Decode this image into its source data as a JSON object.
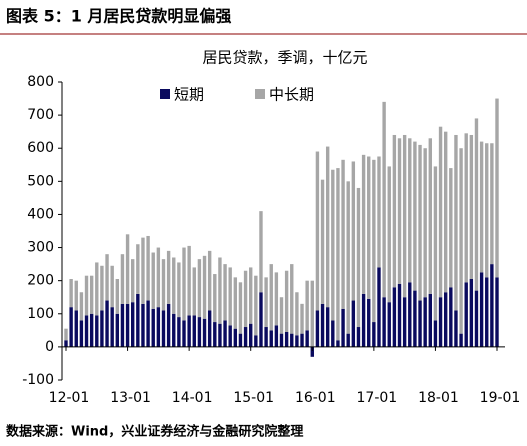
{
  "header": {
    "title": "图表 5：1 月居民贷款明显偏强"
  },
  "chart_data": {
    "type": "stacked_bar",
    "title": "居民贷款，季调，十亿元",
    "categories": [
      "12-01",
      null,
      null,
      null,
      null,
      null,
      null,
      null,
      null,
      null,
      null,
      null,
      "13-01",
      null,
      null,
      null,
      null,
      null,
      null,
      null,
      null,
      null,
      null,
      null,
      "14-01",
      null,
      null,
      null,
      null,
      null,
      null,
      null,
      null,
      null,
      null,
      null,
      "15-01",
      null,
      null,
      null,
      null,
      null,
      null,
      null,
      null,
      null,
      null,
      null,
      "16-01",
      null,
      null,
      null,
      null,
      null,
      null,
      null,
      null,
      null,
      null,
      null,
      "17-01",
      null,
      null,
      null,
      null,
      null,
      null,
      null,
      null,
      null,
      null,
      null,
      "18-01",
      null,
      null,
      null,
      null,
      null,
      null,
      null,
      null,
      null,
      null,
      null,
      "19-01"
    ],
    "series": [
      {
        "name": "短期",
        "color": "#0a0a5e",
        "values": [
          20,
          120,
          110,
          80,
          95,
          100,
          95,
          110,
          140,
          120,
          100,
          130,
          130,
          135,
          160,
          130,
          140,
          115,
          120,
          110,
          130,
          100,
          90,
          80,
          95,
          95,
          90,
          85,
          110,
          75,
          70,
          80,
          65,
          55,
          40,
          60,
          70,
          35,
          165,
          60,
          50,
          65,
          40,
          45,
          40,
          35,
          40,
          50,
          -30,
          110,
          130,
          120,
          80,
          20,
          115,
          40,
          140,
          60,
          160,
          145,
          75,
          240,
          150,
          135,
          180,
          190,
          150,
          195,
          170,
          140,
          150,
          160,
          80,
          150,
          165,
          180,
          110,
          40,
          195,
          205,
          170,
          225,
          210,
          250,
          210
        ]
      },
      {
        "name": "中长期",
        "color": "#a6a6a6",
        "values": [
          35,
          85,
          90,
          85,
          120,
          115,
          160,
          135,
          140,
          125,
          105,
          150,
          210,
          130,
          150,
          200,
          195,
          170,
          180,
          155,
          160,
          170,
          165,
          220,
          210,
          145,
          175,
          190,
          180,
          145,
          200,
          170,
          175,
          155,
          155,
          170,
          170,
          180,
          245,
          150,
          200,
          160,
          110,
          185,
          210,
          130,
          90,
          150,
          200,
          480,
          375,
          485,
          455,
          520,
          450,
          460,
          420,
          420,
          420,
          430,
          490,
          335,
          590,
          410,
          460,
          440,
          490,
          435,
          450,
          470,
          450,
          470,
          465,
          515,
          485,
          360,
          530,
          560,
          450,
          435,
          520,
          395,
          405,
          365,
          540
        ]
      }
    ],
    "ylim": [
      -100,
      800
    ],
    "yticks": [
      -100,
      0,
      100,
      200,
      300,
      400,
      500,
      600,
      700,
      800
    ]
  },
  "footer": {
    "source": "数据来源：Wind，兴业证券经济与金融研究院整理"
  }
}
